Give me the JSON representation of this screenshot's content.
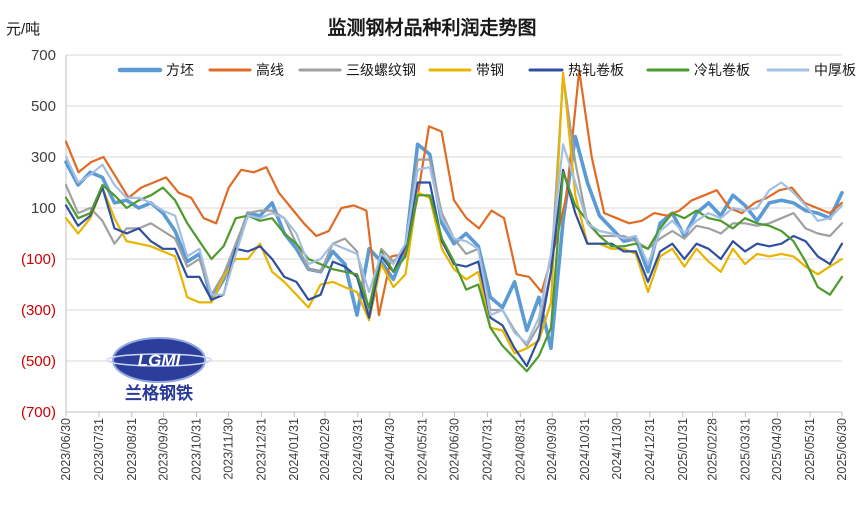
{
  "chart_data": {
    "type": "line",
    "title": "监测钢材品种利润走势图",
    "ylabel": "元/吨",
    "ylim": [
      -700,
      700
    ],
    "yticks": [
      700,
      500,
      300,
      100,
      -100,
      -300,
      -500,
      -700
    ],
    "ytick_labels": [
      "700",
      "500",
      "300",
      "100",
      "(100)",
      "(300)",
      "(500)",
      "(700)"
    ],
    "negative_color": "#cc0000",
    "positive_color": "#404040",
    "x_start": "2023-06-30",
    "x_end": "2025-06-30",
    "xtick_labels": [
      "2023/06/30",
      "2023/07/31",
      "2023/08/31",
      "2023/09/30",
      "2023/10/31",
      "2023/11/30",
      "2023/12/31",
      "2024/01/31",
      "2024/02/29",
      "2024/03/31",
      "2024/04/30",
      "2024/05/31",
      "2024/06/30",
      "2024/07/31",
      "2024/08/31",
      "2024/09/30",
      "2024/10/31",
      "2024/11/30",
      "2024/12/31",
      "2025/01/31",
      "2025/02/28",
      "2025/03/31",
      "2025/04/30",
      "2025/05/31",
      "2025/06/30"
    ],
    "grid": true,
    "legend_position": "top",
    "series": [
      {
        "name": "方坯",
        "color": "#5b9bd5",
        "width": 3.6,
        "values": [
          280,
          190,
          240,
          220,
          120,
          130,
          100,
          120,
          80,
          10,
          -110,
          -80,
          -260,
          -180,
          -60,
          80,
          70,
          120,
          0,
          -60,
          -140,
          -150,
          -70,
          -120,
          -320,
          -60,
          -110,
          -180,
          -60,
          350,
          310,
          40,
          -40,
          0,
          -50,
          -250,
          -290,
          -190,
          -380,
          -250,
          -450,
          50,
          380,
          200,
          70,
          20,
          -30,
          -20,
          -150,
          40,
          80,
          -10,
          80,
          120,
          70,
          150,
          110,
          50,
          120,
          130,
          120,
          90,
          80,
          60,
          160
        ]
      },
      {
        "name": "高线",
        "color": "#e06b24",
        "width": 2.2,
        "values": [
          360,
          240,
          280,
          300,
          220,
          140,
          180,
          200,
          220,
          160,
          140,
          60,
          40,
          180,
          250,
          240,
          260,
          160,
          100,
          40,
          -10,
          10,
          100,
          110,
          90,
          -320,
          -90,
          -80,
          120,
          420,
          400,
          130,
          60,
          20,
          90,
          60,
          -160,
          -170,
          -230,
          -60,
          150,
          640,
          300,
          80,
          60,
          40,
          50,
          80,
          70,
          90,
          130,
          150,
          170,
          100,
          80,
          120,
          140,
          170,
          180,
          120,
          100,
          80,
          120
        ]
      },
      {
        "name": "三级螺纹钢",
        "color": "#a0a0a0",
        "width": 2.2,
        "values": [
          190,
          80,
          100,
          50,
          -40,
          20,
          20,
          40,
          10,
          -20,
          -130,
          -100,
          -240,
          -160,
          -40,
          80,
          90,
          90,
          60,
          -40,
          -140,
          -150,
          -40,
          -20,
          -70,
          -310,
          -60,
          -110,
          -60,
          290,
          290,
          80,
          -20,
          -80,
          -60,
          -300,
          -300,
          -380,
          -440,
          -360,
          -150,
          620,
          280,
          40,
          -10,
          -10,
          -10,
          -30,
          -60,
          -20,
          10,
          -20,
          30,
          20,
          0,
          40,
          40,
          30,
          40,
          60,
          80,
          20,
          0,
          -10,
          40
        ]
      },
      {
        "name": "带钢",
        "color": "#e8b400",
        "width": 2.2,
        "values": [
          60,
          0,
          60,
          180,
          60,
          -30,
          -40,
          -50,
          -70,
          -90,
          -250,
          -270,
          -270,
          -170,
          -100,
          -100,
          -40,
          -150,
          -190,
          -240,
          -290,
          -200,
          -190,
          -210,
          -230,
          -340,
          -120,
          -210,
          -160,
          160,
          140,
          -60,
          -140,
          -180,
          -150,
          -370,
          -380,
          -470,
          -450,
          -420,
          -270,
          630,
          150,
          -40,
          -40,
          -60,
          -60,
          -80,
          -230,
          -90,
          -60,
          -130,
          -60,
          -110,
          -150,
          -60,
          -120,
          -80,
          -90,
          -80,
          -90,
          -130,
          -160,
          -130,
          -100
        ]
      },
      {
        "name": "热轧卷板",
        "color": "#2f4fa0",
        "width": 2.2,
        "values": [
          110,
          30,
          70,
          180,
          20,
          0,
          20,
          -30,
          -60,
          -60,
          -170,
          -170,
          -260,
          -240,
          -60,
          -70,
          -50,
          -100,
          -170,
          -190,
          -260,
          -240,
          -110,
          -130,
          -170,
          -330,
          -90,
          -150,
          -50,
          200,
          200,
          -30,
          -120,
          -130,
          -110,
          -330,
          -360,
          -450,
          -520,
          -410,
          -150,
          250,
          80,
          -40,
          -40,
          -40,
          -70,
          -70,
          -190,
          -70,
          -40,
          -100,
          -40,
          -60,
          -100,
          -30,
          -70,
          -40,
          -50,
          -40,
          -10,
          -30,
          -90,
          -120,
          -40
        ]
      },
      {
        "name": "冷轧卷板",
        "color": "#4e9a2e",
        "width": 2.2,
        "values": [
          140,
          60,
          80,
          190,
          150,
          100,
          130,
          150,
          180,
          130,
          40,
          -30,
          -100,
          -50,
          60,
          70,
          50,
          60,
          0,
          -40,
          -100,
          -120,
          -140,
          -150,
          -160,
          -290,
          -70,
          -150,
          -90,
          150,
          150,
          -20,
          -110,
          -220,
          -200,
          -370,
          -440,
          -490,
          -540,
          -480,
          -370,
          240,
          110,
          50,
          -10,
          -50,
          -50,
          -40,
          -60,
          20,
          80,
          60,
          90,
          60,
          50,
          20,
          60,
          40,
          30,
          10,
          -30,
          -110,
          -210,
          -240,
          -170
        ]
      },
      {
        "name": "中厚板",
        "color": "#a3bfe3",
        "width": 2.2,
        "values": [
          300,
          200,
          230,
          270,
          190,
          140,
          140,
          120,
          90,
          70,
          -90,
          -60,
          -240,
          -240,
          -80,
          70,
          60,
          80,
          60,
          0,
          -120,
          -100,
          -40,
          -60,
          -80,
          -230,
          -80,
          -120,
          -40,
          250,
          260,
          60,
          -20,
          -30,
          -60,
          -320,
          -300,
          -390,
          -430,
          -330,
          -80,
          350,
          200,
          40,
          10,
          0,
          -20,
          -10,
          -120,
          10,
          50,
          0,
          50,
          80,
          60,
          100,
          90,
          100,
          170,
          200,
          160,
          110,
          50,
          60,
          110
        ]
      }
    ]
  },
  "logo": {
    "text": "LGMI",
    "subtitle": "兰格钢铁"
  }
}
